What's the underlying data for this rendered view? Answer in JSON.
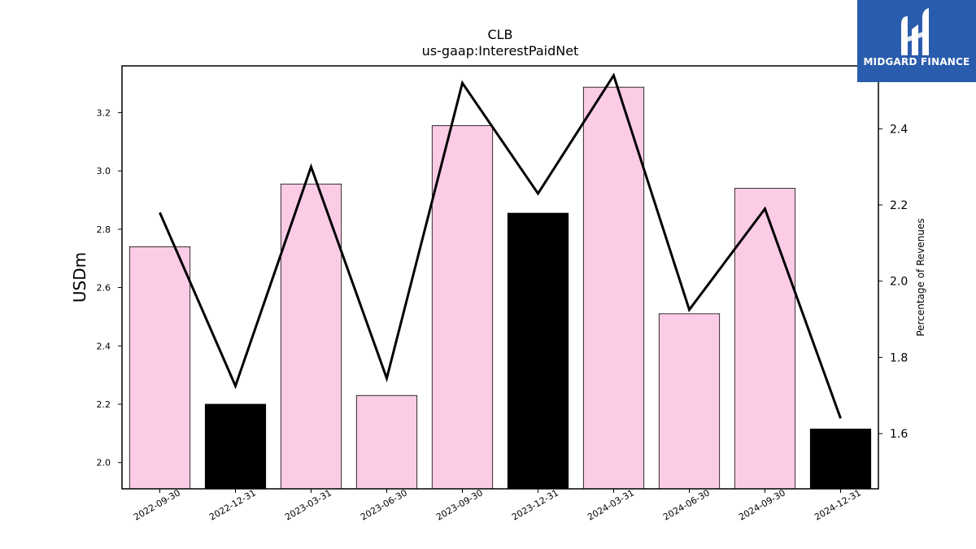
{
  "chart_data": {
    "type": "bar",
    "title": "CLB",
    "subtitle": "us-gaap:InterestPaidNet",
    "ylabel": "USDm",
    "y2label": "Percentage of Revenues",
    "categories": [
      "2022-09-30",
      "2022-12-31",
      "2023-03-31",
      "2023-06-30",
      "2023-09-30",
      "2023-12-31",
      "2024-03-31",
      "2024-06-30",
      "2024-09-30",
      "2024-12-31"
    ],
    "series": [
      {
        "type": "bar",
        "axis": "left",
        "values": [
          2.74,
          2.2,
          2.955,
          2.23,
          3.155,
          2.855,
          3.287,
          2.51,
          2.94,
          2.115
        ],
        "colors": [
          "#fccce6",
          "#000000",
          "#fccce6",
          "#fccce6",
          "#fccce6",
          "#000000",
          "#fccce6",
          "#fccce6",
          "#fccce6",
          "#000000"
        ]
      },
      {
        "type": "line",
        "axis": "right",
        "color": "#000000",
        "values": [
          2.18,
          1.725,
          2.3,
          1.745,
          2.52,
          2.23,
          2.54,
          1.925,
          2.19,
          1.64
        ]
      }
    ],
    "ylim": [
      1.91,
      3.36
    ],
    "y2lim": [
      1.455,
      2.565
    ],
    "yticks": [
      2.0,
      2.2,
      2.4,
      2.6,
      2.8,
      3.0,
      3.2
    ],
    "ytick_labels": [
      "2.0",
      "2.2",
      "2.4",
      "2.6",
      "2.8",
      "3.0",
      "3.2"
    ],
    "y2ticks": [
      1.6,
      1.8,
      2.0,
      2.2,
      2.4
    ],
    "y2tick_labels": [
      "1.6",
      "1.8",
      "2.0",
      "2.2",
      "2.4"
    ],
    "grid": false,
    "legend": "none"
  },
  "logo": {
    "text": "MIDGARD FINANCE",
    "background": "#2a5cad"
  }
}
